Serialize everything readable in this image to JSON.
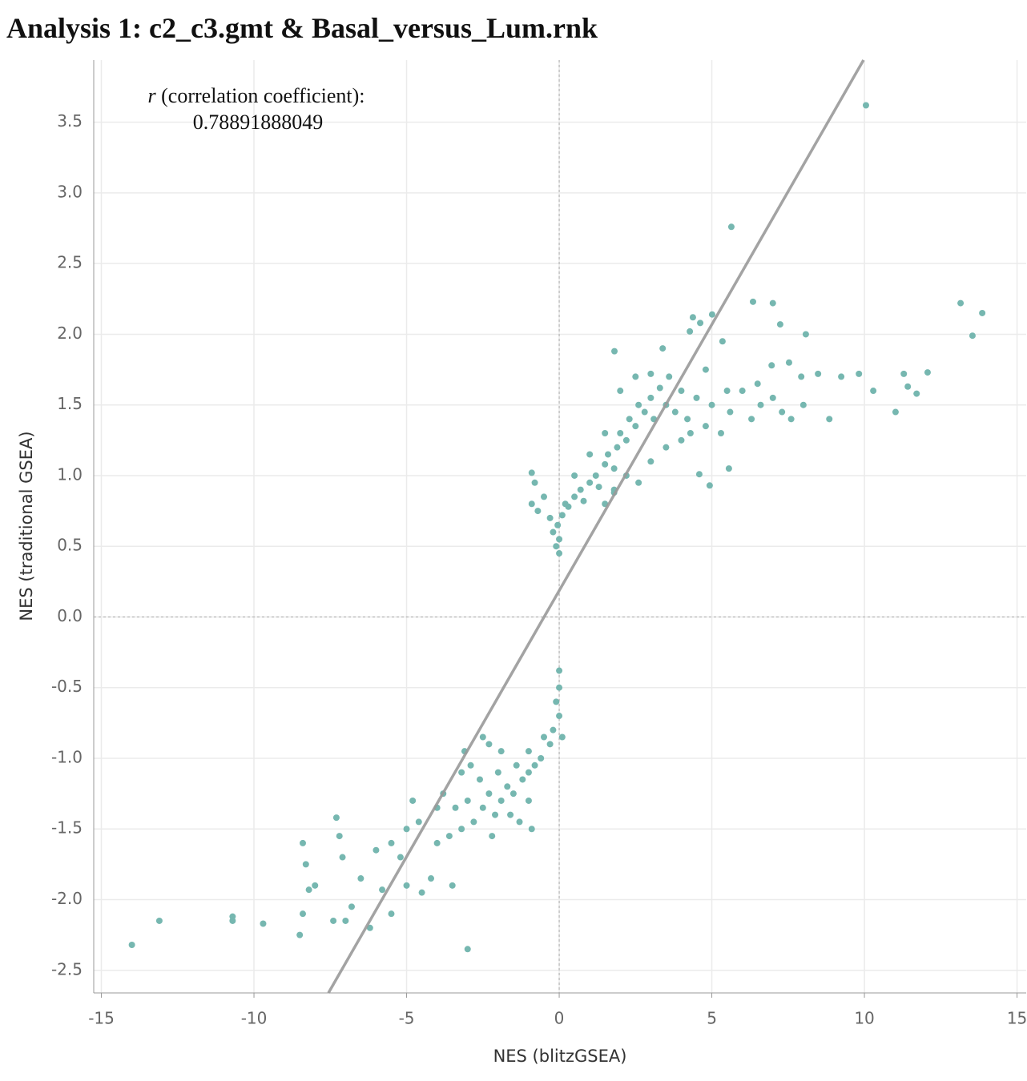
{
  "chart_data": {
    "type": "scatter",
    "title": "Analysis 1: c2_c3.gmt & Basal_versus_Lum.rnk",
    "x_label": "NES (blitzGSEA)",
    "y_label": "NES (traditional GSEA)",
    "annotation": {
      "symbol": "r",
      "label": "(correlation coefficient):",
      "value": "0.78891888049"
    },
    "color": "#76b7b0",
    "line_color": "#999999",
    "grid": true,
    "reference_lines": {
      "x": 0,
      "y": 0
    },
    "regression_line": {
      "x": [
        -7.56,
        9.97
      ],
      "y": [
        -2.66,
        3.94
      ]
    },
    "xlim": [
      -15.25,
      15.3
    ],
    "ylim": [
      -2.66,
      3.94
    ],
    "xticks": [
      -15,
      -10,
      -5,
      0,
      5,
      10,
      15
    ],
    "yticks": [
      -2.5,
      {
        "value": -2,
        "label": "-2.0"
      },
      -1.5,
      {
        "value": -1,
        "label": "-1.0"
      },
      -0.5,
      {
        "value": 0,
        "label": "0.0"
      },
      0.5,
      {
        "value": 1,
        "label": "1.0"
      },
      1.5,
      {
        "value": 2,
        "label": "2.0"
      },
      2.5,
      {
        "value": 3,
        "label": "3.0"
      },
      3.5
    ],
    "x": [
      10.05,
      5.64,
      6.35,
      7.0,
      7.24,
      8.08,
      13.15,
      13.86,
      13.54,
      5.01,
      4.38,
      4.62,
      4.28,
      5.35,
      1.81,
      3.39,
      12.07,
      11.29,
      11.42,
      11.71,
      11.02,
      9.82,
      10.29,
      9.24,
      8.48,
      8.85,
      6.96,
      7.53,
      7.93,
      5.56,
      4.93,
      4.59,
      -0.9,
      -0.7,
      -0.5,
      -0.3,
      -0.2,
      -0.1,
      0,
      0,
      -0.05,
      0.1,
      0.2,
      0.3,
      0.5,
      0.7,
      0.8,
      1.0,
      1.2,
      1.3,
      1.5,
      1.6,
      1.8,
      1.9,
      2.0,
      2.2,
      2.3,
      2.5,
      2.6,
      2.8,
      3.0,
      3.1,
      3.3,
      3.5,
      3.6,
      3.8,
      4.0,
      4.2,
      4.5,
      4.8,
      5.0,
      5.3,
      5.6,
      6.0,
      6.3,
      6.6,
      7.0,
      7.3,
      7.6,
      8.0,
      2.0,
      2.5,
      3.0,
      1.5,
      1.0,
      0.5,
      -0.8,
      -0.9,
      2.2,
      1.8,
      1.5,
      3.5,
      4.0,
      3.0,
      2.6,
      1.8,
      4.8,
      5.5,
      6.5,
      4.3,
      0,
      0,
      -0.1,
      0,
      -0.2,
      0.1,
      -0.3,
      -0.5,
      -0.6,
      -0.8,
      -1.0,
      -1.0,
      -1.2,
      -1.4,
      -1.5,
      -1.7,
      -1.9,
      -2.0,
      -2.1,
      -2.3,
      -2.5,
      -2.6,
      -2.8,
      -3.0,
      -3.2,
      -3.4,
      -3.6,
      -1.3,
      -1.0,
      -2.5,
      -2.3,
      -1.9,
      -3.2,
      -0.9,
      -1.6,
      -2.2,
      -4.0,
      -4.2,
      -4.0,
      -4.6,
      -4.8,
      -5.0,
      -5.2,
      -5.5,
      -4.5,
      -3.5,
      -3.0,
      -5.0,
      -5.5,
      -6.0,
      -6.5,
      -6.8,
      -7.0,
      -7.1,
      -7.2,
      -7.4,
      -7.3,
      -8.0,
      -8.3,
      -8.2,
      -8.4,
      -8.4,
      -8.5,
      -9.7,
      -10.7,
      -10.7,
      -13.1,
      -14.0,
      -5.8,
      -6.2,
      -3.8,
      -3.1,
      -2.9
    ],
    "y": [
      3.62,
      2.76,
      2.23,
      2.22,
      2.07,
      2.0,
      2.22,
      2.15,
      1.99,
      2.14,
      2.12,
      2.08,
      2.02,
      1.95,
      1.88,
      1.9,
      1.73,
      1.72,
      1.63,
      1.58,
      1.45,
      1.72,
      1.6,
      1.7,
      1.72,
      1.4,
      1.78,
      1.8,
      1.7,
      1.05,
      0.93,
      1.01,
      0.8,
      0.75,
      0.85,
      0.7,
      0.6,
      0.5,
      0.45,
      0.55,
      0.65,
      0.72,
      0.8,
      0.78,
      0.85,
      0.9,
      0.82,
      0.95,
      1.0,
      0.92,
      1.08,
      1.15,
      1.05,
      1.2,
      1.3,
      1.25,
      1.4,
      1.35,
      1.5,
      1.45,
      1.55,
      1.4,
      1.62,
      1.5,
      1.7,
      1.45,
      1.6,
      1.4,
      1.55,
      1.35,
      1.5,
      1.3,
      1.45,
      1.6,
      1.4,
      1.5,
      1.55,
      1.45,
      1.4,
      1.5,
      1.6,
      1.7,
      1.72,
      1.3,
      1.15,
      1.0,
      0.95,
      1.02,
      1.0,
      0.9,
      0.8,
      1.2,
      1.25,
      1.1,
      0.95,
      0.88,
      1.75,
      1.6,
      1.65,
      1.3,
      -0.38,
      -0.5,
      -0.6,
      -0.7,
      -0.8,
      -0.85,
      -0.9,
      -0.85,
      -1.0,
      -1.05,
      -0.95,
      -1.1,
      -1.15,
      -1.05,
      -1.25,
      -1.2,
      -1.3,
      -1.1,
      -1.4,
      -1.25,
      -1.35,
      -1.15,
      -1.45,
      -1.3,
      -1.5,
      -1.35,
      -1.55,
      -1.45,
      -1.3,
      -0.85,
      -0.9,
      -0.95,
      -1.1,
      -1.5,
      -1.4,
      -1.55,
      -1.6,
      -1.85,
      -1.35,
      -1.45,
      -1.3,
      -1.5,
      -1.7,
      -1.6,
      -1.95,
      -1.9,
      -2.35,
      -1.9,
      -2.1,
      -1.65,
      -1.85,
      -2.05,
      -2.15,
      -1.7,
      -1.55,
      -2.15,
      -1.42,
      -1.9,
      -1.75,
      -1.93,
      -1.6,
      -2.1,
      -2.25,
      -2.17,
      -2.12,
      -2.15,
      -2.15,
      -2.32,
      -1.93,
      -2.2,
      -1.25,
      -0.95,
      -1.05
    ]
  }
}
